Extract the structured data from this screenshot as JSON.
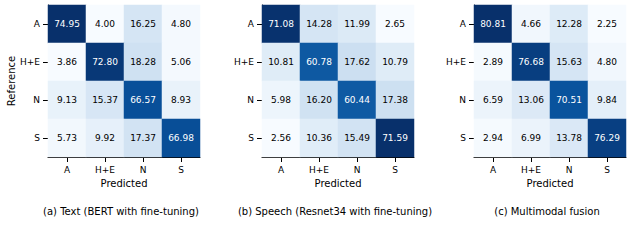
{
  "chart_data": [
    {
      "type": "heatmap",
      "title": "(a) Text (BERT with fine-tuning)",
      "x": [
        "A",
        "H+E",
        "N",
        "S"
      ],
      "y": [
        "A",
        "H+E",
        "N",
        "S"
      ],
      "xlabel": "Predicted",
      "ylabel": "Reference",
      "data_labels": true,
      "cells": [
        [
          74.95,
          4.0,
          16.25,
          4.8
        ],
        [
          3.86,
          72.8,
          18.28,
          5.06
        ],
        [
          9.13,
          15.37,
          66.57,
          8.93
        ],
        [
          5.73,
          9.92,
          17.37,
          66.98
        ]
      ],
      "value_labels": [
        [
          "74.95",
          "4.00",
          "16.25",
          "4.80"
        ],
        [
          "3.86",
          "72.80",
          "18.28",
          "5.06"
        ],
        [
          "9.13",
          "15.37",
          "66.57",
          "8.93"
        ],
        [
          "5.73",
          "9.92",
          "17.37",
          "66.98"
        ]
      ]
    },
    {
      "type": "heatmap",
      "title": "(b) Speech (Resnet34 with fine-tuning)",
      "x": [
        "A",
        "H+E",
        "N",
        "S"
      ],
      "y": [
        "A",
        "H+E",
        "N",
        "S"
      ],
      "xlabel": "Predicted",
      "data_labels": true,
      "cells": [
        [
          71.08,
          14.28,
          11.99,
          2.65
        ],
        [
          10.81,
          60.78,
          17.62,
          10.79
        ],
        [
          5.98,
          16.2,
          60.44,
          17.38
        ],
        [
          2.56,
          10.36,
          15.49,
          71.59
        ]
      ],
      "value_labels": [
        [
          "71.08",
          "14.28",
          "11.99",
          "2.65"
        ],
        [
          "10.81",
          "60.78",
          "17.62",
          "10.79"
        ],
        [
          "5.98",
          "16.20",
          "60.44",
          "17.38"
        ],
        [
          "2.56",
          "10.36",
          "15.49",
          "71.59"
        ]
      ]
    },
    {
      "type": "heatmap",
      "title": "(c) Multimodal fusion",
      "x": [
        "A",
        "H+E",
        "N",
        "S"
      ],
      "y": [
        "A",
        "H+E",
        "N",
        "S"
      ],
      "xlabel": "Predicted",
      "data_labels": true,
      "cells": [
        [
          80.81,
          4.66,
          12.28,
          2.25
        ],
        [
          2.89,
          76.68,
          15.63,
          4.8
        ],
        [
          6.59,
          13.06,
          70.51,
          9.84
        ],
        [
          2.94,
          6.99,
          13.78,
          76.29
        ]
      ],
      "value_labels": [
        [
          "80.81",
          "4.66",
          "12.28",
          "2.25"
        ],
        [
          "2.89",
          "76.68",
          "15.63",
          "4.80"
        ],
        [
          "6.59",
          "13.06",
          "70.51",
          "9.84"
        ],
        [
          "2.94",
          "6.99",
          "13.78",
          "76.29"
        ]
      ]
    }
  ]
}
